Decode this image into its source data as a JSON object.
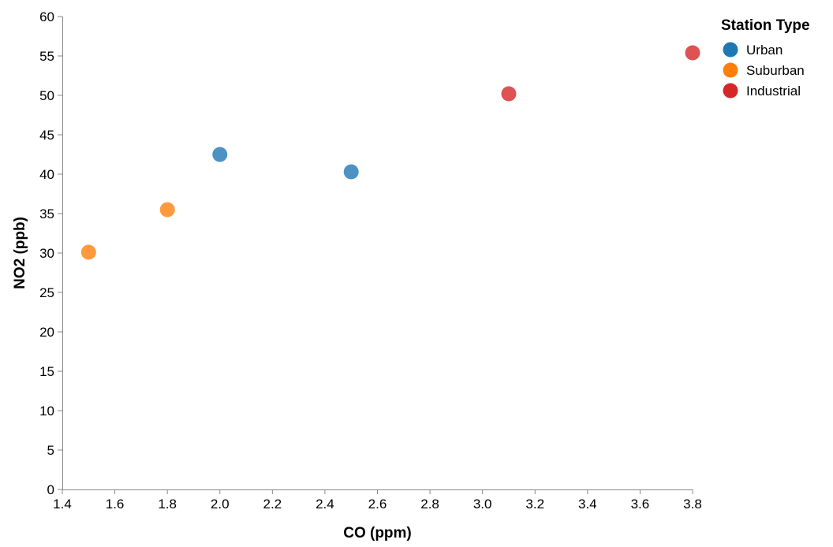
{
  "chart_data": {
    "type": "scatter",
    "xlabel": "CO (ppm)",
    "ylabel": "NO2 (ppb)",
    "xlim": [
      1.4,
      3.8
    ],
    "ylim": [
      0,
      60
    ],
    "x_ticks": [
      1.4,
      1.6,
      1.8,
      2.0,
      2.2,
      2.4,
      2.6,
      2.8,
      3.0,
      3.2,
      3.4,
      3.6,
      3.8
    ],
    "y_ticks": [
      0,
      5,
      10,
      15,
      20,
      25,
      30,
      35,
      40,
      45,
      50,
      55,
      60
    ],
    "x_tick_labels": [
      "1.4",
      "1.6",
      "1.8",
      "2.0",
      "2.2",
      "2.4",
      "2.6",
      "2.8",
      "3.0",
      "3.2",
      "3.4",
      "3.6",
      "3.8"
    ],
    "y_tick_labels": [
      "0",
      "5",
      "10",
      "15",
      "20",
      "25",
      "30",
      "35",
      "40",
      "45",
      "50",
      "55",
      "60"
    ],
    "grid": false,
    "legend": {
      "title": "Station Type",
      "placement": "top-right"
    },
    "series": [
      {
        "name": "Urban",
        "color": "#1f77b4",
        "points": [
          {
            "x": 2.0,
            "y": 42.5
          },
          {
            "x": 2.5,
            "y": 40.3
          }
        ]
      },
      {
        "name": "Suburban",
        "color": "#ff7f0e",
        "points": [
          {
            "x": 1.5,
            "y": 30.1
          },
          {
            "x": 1.8,
            "y": 35.5
          }
        ]
      },
      {
        "name": "Industrial",
        "color": "#d62728",
        "points": [
          {
            "x": 3.1,
            "y": 50.2
          },
          {
            "x": 3.8,
            "y": 55.4
          }
        ]
      }
    ]
  }
}
